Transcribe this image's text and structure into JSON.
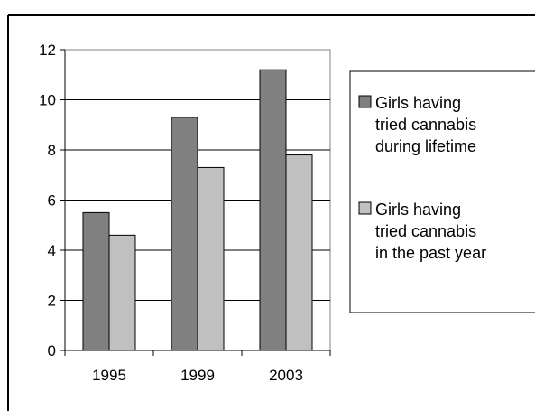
{
  "chart_data": {
    "type": "bar",
    "title": "",
    "xlabel": "",
    "ylabel": "",
    "categories": [
      "1995",
      "1999",
      "2003"
    ],
    "series": [
      {
        "name": "Girls having tried cannabis during lifetime",
        "legend_lines": [
          "Girls having",
          "tried cannabis",
          "during lifetime"
        ],
        "color": "#808080",
        "values": [
          5.5,
          9.3,
          11.2
        ]
      },
      {
        "name": "Girls having tried cannabis in the past year",
        "legend_lines": [
          "Girls having",
          "tried cannabis",
          "in the past year"
        ],
        "color": "#c0c0c0",
        "values": [
          4.6,
          7.3,
          7.8
        ]
      }
    ],
    "ylim": [
      0,
      12
    ],
    "yticks": [
      "0",
      "2",
      "4",
      "6",
      "8",
      "10",
      "12"
    ],
    "grid": true,
    "legend_position": "right"
  }
}
